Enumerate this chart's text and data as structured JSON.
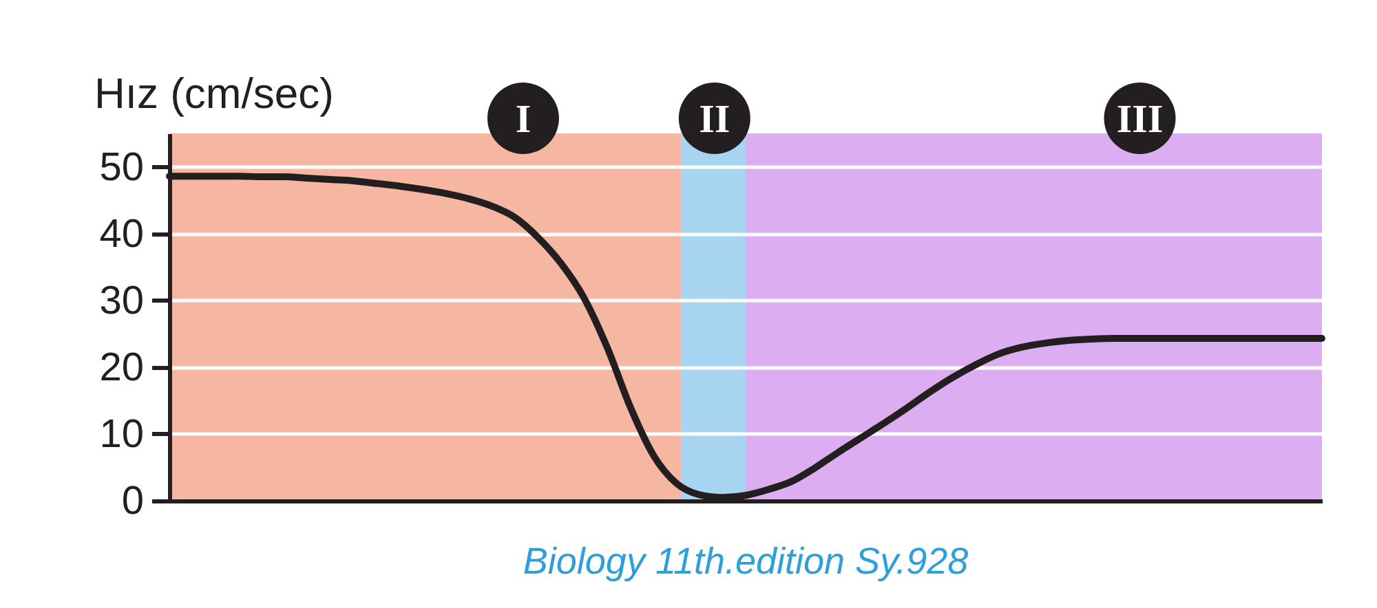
{
  "chart_data": {
    "type": "line",
    "ylabel": "Hız (cm/sec)",
    "annotations": [
      "I",
      "II",
      "III",
      "Biology 11th.edition Sy.928"
    ],
    "categories": [
      null,
      null,
      null,
      null,
      null,
      null,
      null,
      null,
      null,
      null,
      null,
      null,
      null,
      null,
      null,
      null,
      null,
      null,
      null,
      null,
      null,
      null,
      null,
      null,
      null,
      null,
      null,
      null,
      null,
      null,
      null,
      null,
      null,
      null,
      null,
      null,
      null,
      null,
      null,
      null,
      null,
      null,
      null,
      null,
      null,
      null,
      null,
      null,
      null,
      null,
      null
    ],
    "series": [
      {
        "color": "#231f20",
        "values": [
          48.6,
          48.6,
          48.6,
          48.6,
          48.5,
          48.5,
          48.3,
          48.1,
          47.9,
          47.5,
          47.1,
          46.6,
          46,
          45.2,
          44.1,
          42.4,
          39.4,
          35.5,
          30.3,
          22.9,
          14,
          6.8,
          2.6,
          0.9,
          0.5,
          0.8,
          1.7,
          2.9,
          4.9,
          7.2,
          9.4,
          11.6,
          13.9,
          16.3,
          18.5,
          20.4,
          22,
          23,
          23.6,
          24,
          24.2,
          24.3,
          24.3,
          24.3,
          24.3,
          24.3,
          24.3,
          24.3,
          24.3,
          24.3,
          24.3
        ]
      }
    ],
    "ylim": [
      0,
      55
    ],
    "yticks": [
      0,
      10,
      20,
      30,
      40,
      50
    ],
    "grid": "y"
  }
}
